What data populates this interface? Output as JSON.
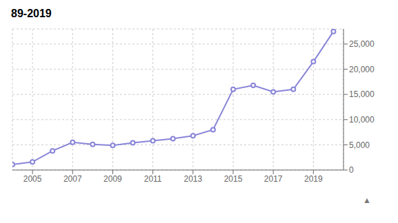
{
  "chart_data": {
    "type": "line",
    "title": "89-2019",
    "annotation": "▲",
    "x": [
      2004,
      2005,
      2006,
      2007,
      2008,
      2009,
      2010,
      2011,
      2012,
      2013,
      2014,
      2015,
      2016,
      2017,
      2018,
      2019,
      2020
    ],
    "values": [
      1100,
      1600,
      3800,
      5500,
      5100,
      4900,
      5400,
      5800,
      6200,
      6800,
      8000,
      16000,
      16800,
      15500,
      16000,
      21500,
      27500
    ],
    "xlim": [
      2004.0,
      2020.5
    ],
    "xticks": [
      2005,
      2007,
      2009,
      2011,
      2013,
      2015,
      2017,
      2019
    ],
    "ylim": [
      0,
      28000
    ],
    "yticks": [
      0,
      {
        "value": 5000,
        "label": "5,000"
      },
      {
        "value": 10000,
        "label": "10,000"
      },
      {
        "value": 15000,
        "label": "15,000"
      },
      {
        "value": 20000,
        "label": "20,000"
      },
      {
        "value": 25000,
        "label": "25,000"
      }
    ],
    "grid": true,
    "marker": "circle"
  }
}
